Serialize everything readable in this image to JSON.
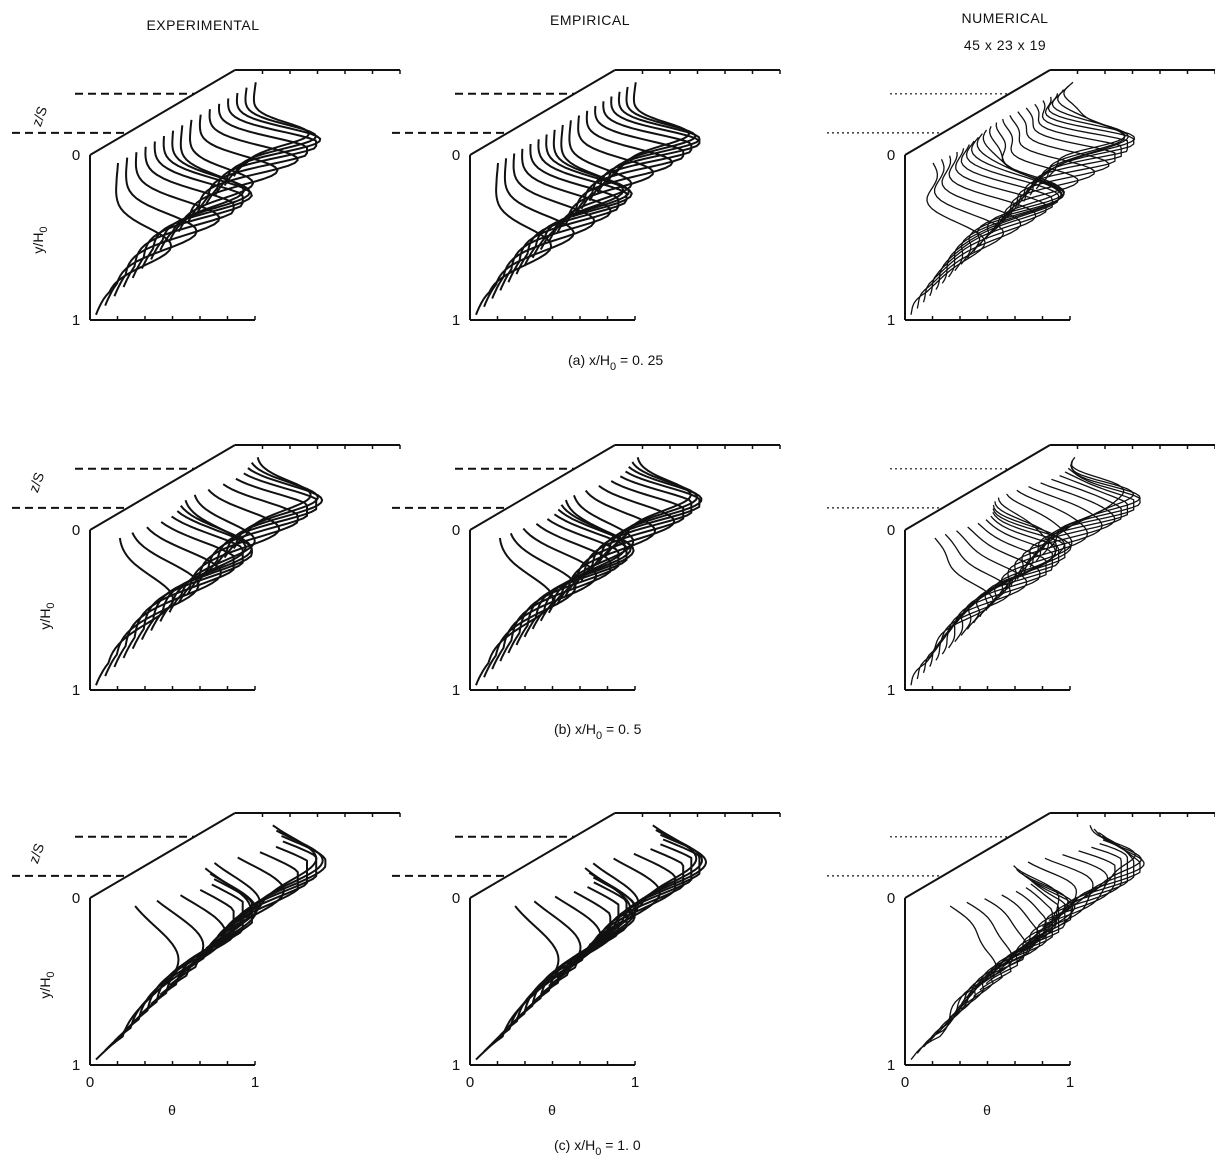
{
  "figure": {
    "column_titles": [
      "EXPERIMENTAL",
      "EMPIRICAL",
      "NUMERICAL"
    ],
    "grid_note": "45 x 23 x 19",
    "row_captions": [
      {
        "prefix": "(a) x/H",
        "sub": "0",
        "suffix": " = 0. 25"
      },
      {
        "prefix": "(b) x/H",
        "sub": "0",
        "suffix": " = 0. 5"
      },
      {
        "prefix": "(c) x/H",
        "sub": "0",
        "suffix": " = 1. 0"
      }
    ],
    "axis": {
      "z_label": "z/S",
      "y_label_main": "y/H",
      "y_label_sub": "0",
      "x_label": "θ",
      "y_tick_top": "0",
      "y_tick_bottom": "1",
      "x_tick_left": "0",
      "x_tick_right": "1"
    }
  },
  "chart_data": {
    "type": "line",
    "title": "",
    "description_axes": {
      "x": "θ",
      "y": "y/H0",
      "depth": "z/S"
    },
    "xlim": [
      0,
      1
    ],
    "ylim": [
      0,
      1
    ],
    "columns": [
      "EXPERIMENTAL",
      "EMPIRICAL",
      "NUMERICAL"
    ],
    "rows": [
      {
        "x_over_H0": 0.25,
        "profile_count": {
          "EXPERIMENTAL": 16,
          "EMPIRICAL": 18,
          "NUMERICAL": 23
        }
      },
      {
        "x_over_H0": 0.5,
        "profile_count": {
          "EXPERIMENTAL": 16,
          "EMPIRICAL": 18,
          "NUMERICAL": 23
        }
      },
      {
        "x_over_H0": 1.0,
        "profile_count": {
          "EXPERIMENTAL": 16,
          "EMPIRICAL": 18,
          "NUMERICAL": 23
        }
      }
    ]
  }
}
